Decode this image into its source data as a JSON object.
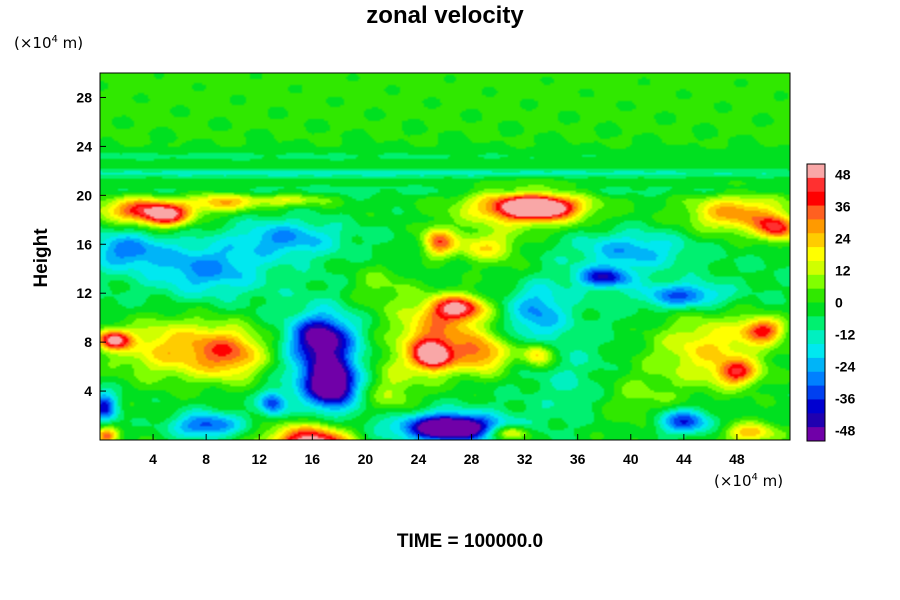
{
  "chart_data": {
    "type": "heatmap",
    "title": "zonal velocity",
    "ylabel": "Height",
    "xlabel": "",
    "x_unit": {
      "prefix": "(×10",
      "exp": "4",
      "suffix": " m)"
    },
    "y_unit": {
      "prefix": "(×10",
      "exp": "4",
      "suffix": " m)"
    },
    "footer": "TIME = 100000.0",
    "xlim": [
      0,
      52
    ],
    "ylim": [
      0,
      30
    ],
    "x_ticks": [
      4,
      8,
      12,
      16,
      20,
      24,
      28,
      32,
      36,
      40,
      44,
      48
    ],
    "y_ticks": [
      4,
      8,
      12,
      16,
      20,
      24,
      28
    ],
    "colorbar": {
      "range": [
        -52,
        52
      ],
      "ticks": [
        48,
        36,
        24,
        12,
        0,
        -12,
        -24,
        -36,
        -48
      ],
      "colors": [
        "#f9a7a7",
        "#ff3030",
        "#ff0000",
        "#ff6020",
        "#ff9a00",
        "#ffcc00",
        "#ffff00",
        "#d0ff00",
        "#80ff00",
        "#30e800",
        "#00e020",
        "#00f070",
        "#00f0c0",
        "#00e8f0",
        "#00b4f8",
        "#0080ff",
        "#0040f0",
        "#0000d0",
        "#2000b0",
        "#7000a8"
      ]
    },
    "field": {
      "background": 1,
      "features": [
        {
          "x": 1,
          "y": 23.2,
          "rx": 60,
          "ry": 0.5,
          "v": -6
        },
        {
          "x": 20,
          "y": 21.8,
          "rx": 60,
          "ry": 0.4,
          "v": -12
        },
        {
          "x": 26,
          "y": 20.4,
          "rx": 60,
          "ry": 0.5,
          "v": -6
        },
        {
          "x": 26,
          "y": 10,
          "rx": 60,
          "ry": 10,
          "v": -8
        },
        {
          "x": 3,
          "y": 18.8,
          "rx": 3,
          "ry": 1,
          "v": 38
        },
        {
          "x": 5,
          "y": 18.3,
          "rx": 1.8,
          "ry": 0.9,
          "v": 40
        },
        {
          "x": 9,
          "y": 19.4,
          "rx": 2.5,
          "ry": 0.8,
          "v": 26
        },
        {
          "x": 14,
          "y": 19.6,
          "rx": 3,
          "ry": 0.5,
          "v": 18
        },
        {
          "x": 32,
          "y": 19,
          "rx": 4.5,
          "ry": 1.5,
          "v": 40
        },
        {
          "x": 33,
          "y": 19,
          "rx": 2.5,
          "ry": 0.8,
          "v": 50
        },
        {
          "x": 48,
          "y": 18.5,
          "rx": 3.5,
          "ry": 1.5,
          "v": 32
        },
        {
          "x": 51,
          "y": 17.3,
          "rx": 1.5,
          "ry": 1,
          "v": 40
        },
        {
          "x": 25.5,
          "y": 16.2,
          "rx": 1.2,
          "ry": 1.2,
          "v": 36
        },
        {
          "x": 29,
          "y": 15.8,
          "rx": 2.5,
          "ry": 1.2,
          "v": 24
        },
        {
          "x": 2,
          "y": 15.5,
          "rx": 3,
          "ry": 1.5,
          "v": -24
        },
        {
          "x": 8,
          "y": 14,
          "rx": 4,
          "ry": 2,
          "v": -22
        },
        {
          "x": 14,
          "y": 16.5,
          "rx": 4,
          "ry": 1.5,
          "v": -22
        },
        {
          "x": 40,
          "y": 15.5,
          "rx": 4,
          "ry": 1.5,
          "v": -20
        },
        {
          "x": 38,
          "y": 13.3,
          "rx": 2,
          "ry": 0.8,
          "v": -34
        },
        {
          "x": 44,
          "y": 11.8,
          "rx": 3,
          "ry": 1,
          "v": -28
        },
        {
          "x": 33,
          "y": 10.5,
          "rx": 2,
          "ry": 2.5,
          "v": -20
        },
        {
          "x": 25.5,
          "y": 8.5,
          "rx": 3.5,
          "ry": 3,
          "v": 36
        },
        {
          "x": 25,
          "y": 6.9,
          "rx": 1.3,
          "ry": 1.1,
          "v": 50
        },
        {
          "x": 27,
          "y": 10.8,
          "rx": 2,
          "ry": 1,
          "v": 44
        },
        {
          "x": 29,
          "y": 7,
          "rx": 2,
          "ry": 1.5,
          "v": 28
        },
        {
          "x": 33,
          "y": 7,
          "rx": 1.2,
          "ry": 1,
          "v": 30
        },
        {
          "x": 6,
          "y": 7.5,
          "rx": 5,
          "ry": 2.5,
          "v": 30
        },
        {
          "x": 1,
          "y": 8.2,
          "rx": 1.3,
          "ry": 0.8,
          "v": 48
        },
        {
          "x": 10,
          "y": 7,
          "rx": 2.5,
          "ry": 2,
          "v": 26
        },
        {
          "x": 46,
          "y": 7.5,
          "rx": 4.5,
          "ry": 3,
          "v": 26
        },
        {
          "x": 50,
          "y": 9,
          "rx": 1.5,
          "ry": 1,
          "v": 38
        },
        {
          "x": 48,
          "y": 5.5,
          "rx": 1.5,
          "ry": 1,
          "v": 34
        },
        {
          "x": 17,
          "y": 6,
          "rx": 2.5,
          "ry": 3.5,
          "v": -36
        },
        {
          "x": 17.5,
          "y": 4.5,
          "rx": 1.5,
          "ry": 1.5,
          "v": -42
        },
        {
          "x": 16.5,
          "y": 8.5,
          "rx": 2,
          "ry": 1.5,
          "v": -30
        },
        {
          "x": 13,
          "y": 3,
          "rx": 1,
          "ry": 1,
          "v": -30
        },
        {
          "x": 16,
          "y": -0.3,
          "rx": 3,
          "ry": 1.5,
          "v": 60
        },
        {
          "x": 26,
          "y": 1,
          "rx": 5,
          "ry": 1.3,
          "v": -40
        },
        {
          "x": 26.5,
          "y": 1,
          "rx": 2,
          "ry": 0.7,
          "v": -50
        },
        {
          "x": 8,
          "y": 1.2,
          "rx": 2.5,
          "ry": 1,
          "v": -32
        },
        {
          "x": 0.3,
          "y": 2.7,
          "rx": 1,
          "ry": 1.2,
          "v": -36
        },
        {
          "x": 0.5,
          "y": 0.3,
          "rx": 0.8,
          "ry": 0.7,
          "v": 36
        },
        {
          "x": 31,
          "y": 0.6,
          "rx": 1.5,
          "ry": 0.6,
          "v": 30
        },
        {
          "x": 44,
          "y": 1.5,
          "rx": 2,
          "ry": 1,
          "v": -34
        },
        {
          "x": 40,
          "y": 3.5,
          "rx": 3.5,
          "ry": 2.5,
          "v": 10
        },
        {
          "x": 49,
          "y": 0.6,
          "rx": 2,
          "ry": 0.8,
          "v": 26
        },
        {
          "x": 22,
          "y": 4,
          "rx": 2,
          "ry": 3,
          "v": 14
        },
        {
          "x": 36,
          "y": 4,
          "rx": 3,
          "ry": 3,
          "v": -8
        },
        {
          "x": 21,
          "y": 12.5,
          "rx": 2.5,
          "ry": 2,
          "v": 12
        },
        {
          "x": 31,
          "y": 13.5,
          "rx": 3,
          "ry": 1.5,
          "v": 6
        }
      ]
    }
  }
}
